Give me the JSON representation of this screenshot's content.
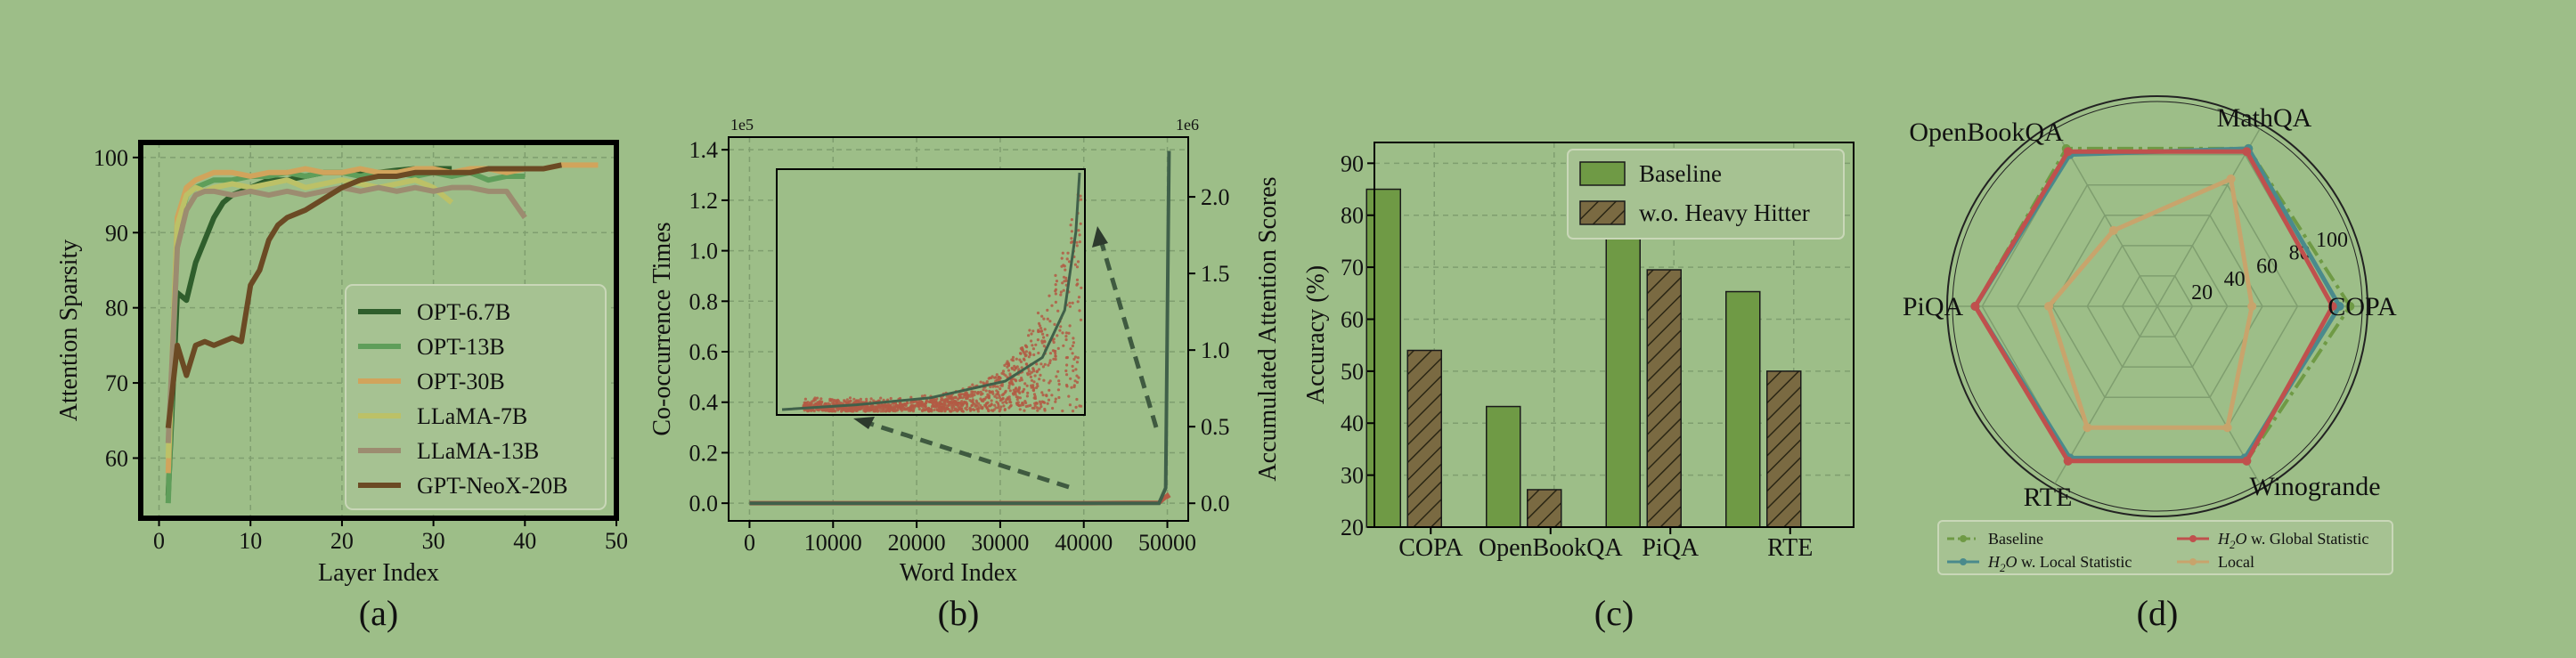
{
  "chart_data": [
    {
      "panel_label": "(a)",
      "type": "line",
      "xlabel": "Layer Index",
      "ylabel": "Attention Sparsity",
      "xlim": [
        -2,
        50
      ],
      "ylim": [
        52,
        102
      ],
      "xticks": [
        0,
        10,
        20,
        30,
        40,
        50
      ],
      "yticks": [
        60,
        70,
        80,
        90,
        100
      ],
      "grid": true,
      "legend_position": "lower-right",
      "series": [
        {
          "name": "OPT-6.7B",
          "color": "#2f5e2c",
          "x": [
            1,
            2,
            3,
            4,
            5,
            6,
            7,
            8,
            10,
            12,
            14,
            16,
            18,
            20,
            22,
            24,
            26,
            28,
            30,
            32
          ],
          "y": [
            55,
            82,
            81,
            86,
            89,
            92,
            94,
            95,
            96,
            97,
            97,
            97.5,
            98,
            98,
            98,
            98,
            98.3,
            98.5,
            98.5,
            98.5
          ]
        },
        {
          "name": "OPT-13B",
          "color": "#5f9e5a",
          "x": [
            1,
            2,
            3,
            4,
            5,
            6,
            8,
            10,
            12,
            14,
            16,
            18,
            20,
            22,
            24,
            26,
            28,
            30,
            32,
            34,
            36,
            38,
            40
          ],
          "y": [
            54,
            90,
            95,
            96,
            96.5,
            97,
            97,
            97.5,
            97.5,
            98,
            97.5,
            98,
            98,
            97.5,
            98,
            98,
            97.5,
            98,
            97.5,
            98,
            97,
            97.5,
            97.5
          ]
        },
        {
          "name": "OPT-30B",
          "color": "#d1a45c",
          "x": [
            1,
            2,
            3,
            4,
            5,
            6,
            8,
            10,
            12,
            14,
            16,
            18,
            20,
            22,
            24,
            26,
            28,
            30,
            32,
            34,
            36,
            38,
            40,
            42,
            44,
            46,
            48
          ],
          "y": [
            58,
            92,
            96,
            97,
            97.5,
            98,
            98,
            97.5,
            98,
            98,
            98.5,
            98,
            98,
            98.5,
            98,
            98,
            98.5,
            98.5,
            98,
            98.5,
            98.5,
            98,
            98.5,
            98.5,
            99,
            99,
            99
          ]
        },
        {
          "name": "LLaMA-7B",
          "color": "#bcc167",
          "x": [
            1,
            2,
            3,
            4,
            5,
            6,
            8,
            10,
            12,
            14,
            16,
            18,
            20,
            22,
            24,
            26,
            28,
            30,
            31,
            32
          ],
          "y": [
            60,
            91,
            95,
            96,
            95.5,
            96,
            96.5,
            96,
            96.5,
            97,
            96,
            96.5,
            97,
            96.5,
            96,
            96.5,
            97,
            96,
            95,
            94
          ]
        },
        {
          "name": "LLaMA-13B",
          "color": "#9c8c70",
          "x": [
            1,
            2,
            3,
            4,
            5,
            6,
            8,
            10,
            12,
            14,
            16,
            18,
            20,
            22,
            24,
            26,
            28,
            30,
            32,
            34,
            36,
            38,
            40
          ],
          "y": [
            62,
            88,
            93,
            95,
            95.5,
            95.5,
            95,
            95.5,
            95,
            95.5,
            95,
            95.5,
            96,
            95.5,
            96,
            95.5,
            96,
            95.5,
            96,
            96,
            95.5,
            95.5,
            92
          ]
        },
        {
          "name": "GPT-NeoX-20B",
          "color": "#6b4a24",
          "x": [
            1,
            2,
            3,
            4,
            5,
            6,
            7,
            8,
            9,
            10,
            11,
            12,
            13,
            14,
            16,
            18,
            20,
            22,
            24,
            26,
            28,
            30,
            32,
            34,
            36,
            38,
            40,
            42,
            44
          ],
          "y": [
            64,
            75,
            71,
            75,
            75.5,
            75,
            75.5,
            76,
            75.5,
            83,
            85,
            89,
            91,
            92,
            93,
            94.5,
            96,
            97,
            97.5,
            97.5,
            98,
            98,
            98,
            98,
            98.5,
            98.5,
            98.5,
            98.5,
            99
          ]
        }
      ]
    },
    {
      "panel_label": "(b)",
      "type": "scatter",
      "xlabel": "Word Index",
      "ylabel": "Co-occurrence Times",
      "ylabel_right": "Accumulated Attention Scores",
      "xlim": [
        -2500,
        52500
      ],
      "ylim": [
        -0.07,
        1.45
      ],
      "ylim_right": [
        -0.115,
        2.39
      ],
      "xticks": [
        0,
        10000,
        20000,
        30000,
        40000,
        50000
      ],
      "yticks": [
        0.0,
        0.2,
        0.4,
        0.6,
        0.8,
        1.0,
        1.2,
        1.4
      ],
      "yticks_right": [
        0.0,
        0.5,
        1.0,
        1.5,
        2.0
      ],
      "yticks_right_labels": [
        "0.0",
        "0.5",
        "1.0",
        "1.5",
        "2.0"
      ],
      "offset_left": "1e5",
      "offset_right": "1e6",
      "grid": true,
      "scatter_color": "#b35a44",
      "line_color": "#40604a",
      "series": [
        {
          "name": "co-occurrence",
          "axis": "left",
          "description_points": "dense flat near zero, spike at the end",
          "x": [
            0,
            10000,
            20000,
            30000,
            40000,
            49000,
            50000,
            50200
          ],
          "y": [
            0.0,
            0.0,
            0.0,
            0.0,
            0.0,
            0.002,
            0.03,
            0.02
          ]
        },
        {
          "name": "accumulated",
          "axis": "right",
          "x": [
            0,
            10000,
            20000,
            30000,
            40000,
            49000,
            49800,
            50200
          ],
          "y": [
            0.0,
            0.0,
            0.0,
            0.0,
            0.0,
            0.0,
            0.1,
            2.3
          ]
        }
      ],
      "inset": {
        "x": [
          0,
          10000,
          20000,
          30000,
          35000,
          38000,
          39500,
          40000
        ],
        "y": [
          0.0,
          0.02,
          0.05,
          0.12,
          0.22,
          0.42,
          0.75,
          1.0
        ]
      }
    },
    {
      "panel_label": "(c)",
      "type": "bar",
      "ylabel": "Accuracy (%)",
      "ylim": [
        20,
        94
      ],
      "yticks": [
        20,
        30,
        40,
        50,
        60,
        70,
        80,
        90
      ],
      "categories": [
        "COPA",
        "OpenBookQA",
        "PiQA",
        "RTE"
      ],
      "grid": true,
      "legend_position": "upper-right",
      "series": [
        {
          "name": "Baseline",
          "color": "#6f9a45",
          "hatch": false,
          "values": [
            85,
            43.2,
            78.2,
            65.3
          ]
        },
        {
          "name": "w.o. Heavy Hitter",
          "color": "#7a6a42",
          "hatch": true,
          "values": [
            54,
            27.2,
            69.5,
            50
          ]
        }
      ]
    },
    {
      "panel_label": "(d)",
      "type": "radar",
      "categories": [
        "COPA",
        "MathQA",
        "OpenBookQA",
        "PiQA",
        "RTE",
        "Winogrande"
      ],
      "rlim": [
        0,
        120
      ],
      "rticks": [
        20,
        40,
        60,
        80,
        100
      ],
      "legend_position": "bottom",
      "series": [
        {
          "name": "Baseline",
          "color": "#6f9a45",
          "dashed": true,
          "values": [
            110,
            104,
            104,
            104,
            102,
            102
          ]
        },
        {
          "name": "H2O w. Global Statistic",
          "legend_prefix": "H",
          "legend_sub": "2",
          "legend_mid": "O",
          "legend_rest": " w. Global Statistic",
          "color": "#c0504d",
          "dashed": false,
          "values": [
            100,
            102,
            102,
            104,
            102,
            102
          ]
        },
        {
          "name": "H2O w. Local Statistic",
          "legend_prefix": "H",
          "legend_sub": "2",
          "legend_mid": "O",
          "legend_rest": " w. Local Statistic",
          "color": "#4a8a8c",
          "dashed": false,
          "values": [
            104,
            104,
            100,
            104,
            100,
            100
          ]
        },
        {
          "name": "Local",
          "color": "#c8a46c",
          "dashed": false,
          "values": [
            54,
            84,
            50,
            62,
            80,
            80
          ]
        }
      ]
    }
  ]
}
